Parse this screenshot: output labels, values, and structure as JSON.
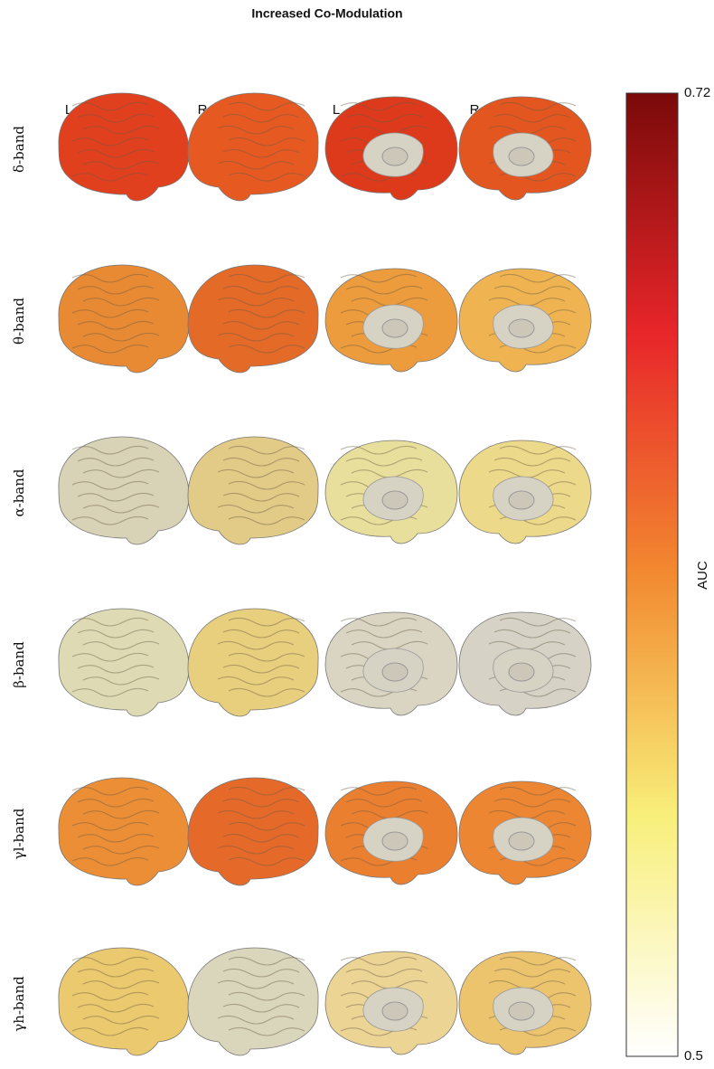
{
  "chart_data": {
    "type": "brain-map-grid",
    "title": "Increased Co-Modulation",
    "columns": [
      "L",
      "R",
      "L",
      "R"
    ],
    "rows": [
      {
        "label": "δ-band",
        "colors": [
          "#e0401e",
          "#e65a22",
          "#dd3a1c",
          "#e3561f"
        ]
      },
      {
        "label": "θ-band",
        "colors": [
          "#e88a34",
          "#e46a28",
          "#ec9c3c",
          "#efb451"
        ]
      },
      {
        "label": "α-band",
        "colors": [
          "#d8d2b6",
          "#e2cb86",
          "#e9df9c",
          "#ecd98a"
        ]
      },
      {
        "label": "β-band",
        "colors": [
          "#dedbb4",
          "#e8cf7e",
          "#d9d5c2",
          "#d6d3c6"
        ]
      },
      {
        "label": "γl-band",
        "colors": [
          "#eb8e36",
          "#e56a2a",
          "#eb7f30",
          "#ec8632"
        ]
      },
      {
        "label": "γh-band",
        "colors": [
          "#ebc96e",
          "#dad6bc",
          "#ebd494",
          "#ecc46e"
        ]
      }
    ],
    "colorbar": {
      "label": "AUC",
      "lim": [
        0.5,
        0.72
      ],
      "ticks": [
        0.5,
        0.72
      ],
      "colors": [
        "#ffffff",
        "#f8ef7a",
        "#f28a30",
        "#e8262a",
        "#7a0a0a"
      ]
    }
  }
}
